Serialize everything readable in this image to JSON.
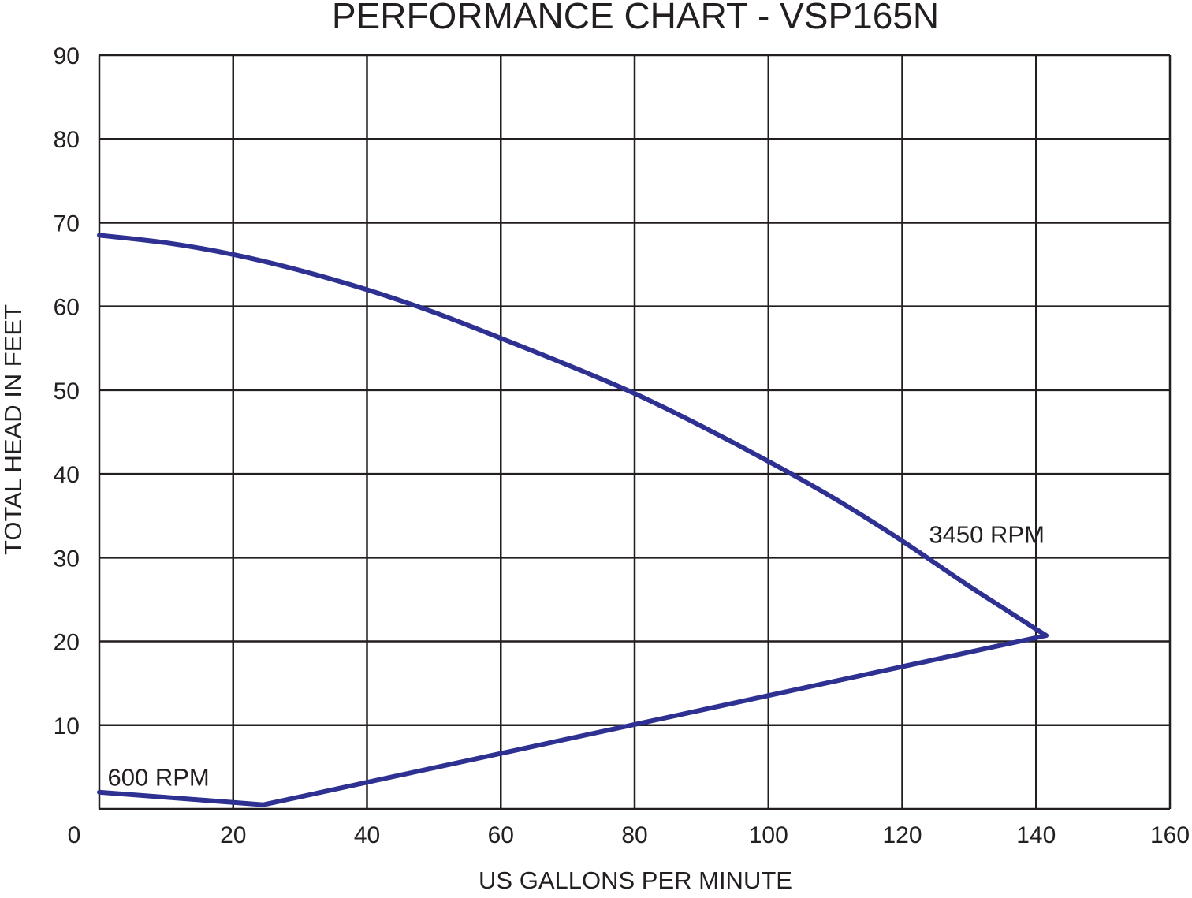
{
  "chart_data": {
    "type": "line",
    "title": "PERFORMANCE CHART - VSP165N",
    "xlabel": "US GALLONS PER MINUTE",
    "ylabel": "TOTAL HEAD IN FEET",
    "xlim": [
      0,
      160
    ],
    "ylim": [
      0,
      90
    ],
    "xticks": [
      0,
      20,
      40,
      60,
      80,
      100,
      120,
      140,
      160
    ],
    "yticks": [
      10,
      20,
      30,
      40,
      50,
      60,
      70,
      80,
      90
    ],
    "grid": true,
    "line_color": "#2e3192",
    "series": [
      {
        "name": "3450 RPM",
        "x": [
          0,
          10,
          20,
          30,
          40,
          50,
          60,
          70,
          80,
          90,
          100,
          110,
          120,
          130,
          141.5
        ],
        "y": [
          68.5,
          67.6,
          66.2,
          64.3,
          62,
          59.3,
          56.2,
          53,
          49.6,
          45.7,
          41.5,
          37,
          32,
          26.6,
          20.7
        ]
      },
      {
        "name": "600 RPM",
        "x": [
          0,
          24.5,
          141.5
        ],
        "y": [
          2,
          0.5,
          20.7
        ]
      }
    ],
    "annotations": [
      {
        "text": "3450 RPM",
        "x": 124,
        "y": 33
      },
      {
        "text": "600 RPM",
        "x": 1,
        "y": 4
      }
    ]
  }
}
